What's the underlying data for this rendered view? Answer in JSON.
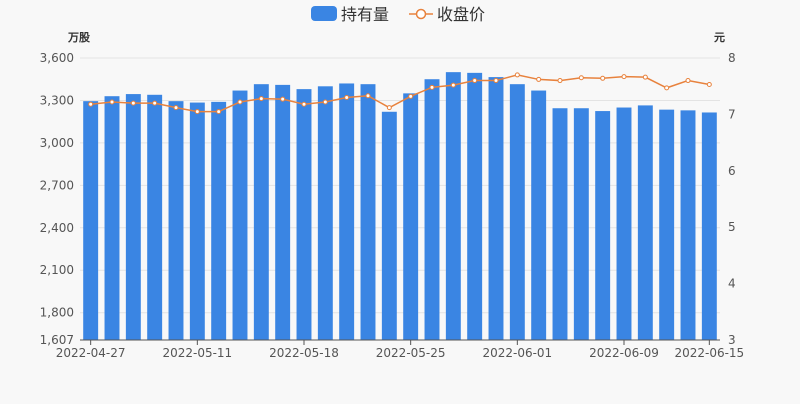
{
  "chart_data": {
    "type": "bar+line",
    "legend": {
      "position": "top-center",
      "items": [
        {
          "label": "持有量",
          "series": "holdings",
          "marker": "bar"
        },
        {
          "label": "收盘价",
          "series": "close",
          "marker": "line"
        }
      ]
    },
    "axes": {
      "left_unit": "万股",
      "right_unit": "元",
      "left_ticks": [
        "1,607",
        "1,800",
        "2,100",
        "2,400",
        "2,700",
        "3,000",
        "3,300",
        "3,600"
      ],
      "left_range": [
        1607,
        3600
      ],
      "right_ticks": [
        "3",
        "4",
        "5",
        "6",
        "7",
        "8"
      ],
      "right_range": [
        3,
        8
      ],
      "x_tick_labels": [
        {
          "label": "2022-04-27",
          "index": 0
        },
        {
          "label": "2022-05-11",
          "index": 5
        },
        {
          "label": "2022-05-18",
          "index": 10
        },
        {
          "label": "2022-05-25",
          "index": 15
        },
        {
          "label": "2022-06-01",
          "index": 20
        },
        {
          "label": "2022-06-09",
          "index": 25
        },
        {
          "label": "2022-06-15",
          "index": 29
        }
      ]
    },
    "grid": true,
    "series": [
      {
        "name": "持有量",
        "axis": "left",
        "type": "bar",
        "color": "#3a85e3",
        "values": [
          3295,
          3330,
          3345,
          3340,
          3295,
          3285,
          3290,
          3370,
          3415,
          3410,
          3380,
          3400,
          3420,
          3415,
          3220,
          3350,
          3450,
          3500,
          3495,
          3465,
          3415,
          3370,
          3245,
          3245,
          3225,
          3250,
          3265,
          3235,
          3230,
          3215
        ]
      },
      {
        "name": "收盘价",
        "axis": "right",
        "type": "line",
        "color": "#e8823d",
        "values": [
          7.18,
          7.22,
          7.2,
          7.2,
          7.12,
          7.05,
          7.05,
          7.22,
          7.28,
          7.27,
          7.18,
          7.22,
          7.3,
          7.33,
          7.12,
          7.32,
          7.48,
          7.52,
          7.6,
          7.6,
          7.7,
          7.62,
          7.6,
          7.65,
          7.64,
          7.67,
          7.66,
          7.47,
          7.6,
          7.53
        ]
      }
    ]
  }
}
